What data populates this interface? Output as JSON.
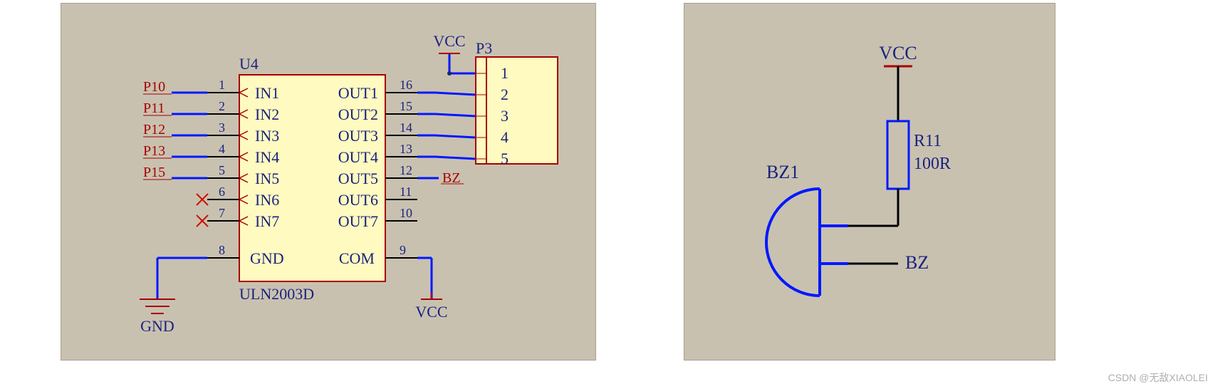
{
  "colors": {
    "panel_bg": "#c9c1b0",
    "panel_border": "#a89f8e",
    "chip_fill": "#fffac0",
    "chip_border": "#a80000",
    "text_navy": "#1a237e",
    "text_maroon": "#a80000",
    "wire_black": "#000000",
    "wire_blue": "#0018ff",
    "nc_red": "#d01000"
  },
  "left": {
    "u_ref": "U4",
    "u_part": "ULN2003D",
    "inputs": [
      {
        "pin": "1",
        "name": "IN1",
        "net": "P10"
      },
      {
        "pin": "2",
        "name": "IN2",
        "net": "P11"
      },
      {
        "pin": "3",
        "name": "IN3",
        "net": "P12"
      },
      {
        "pin": "4",
        "name": "IN4",
        "net": "P13"
      },
      {
        "pin": "5",
        "name": "IN5",
        "net": "P15"
      },
      {
        "pin": "6",
        "name": "IN6",
        "net": ""
      },
      {
        "pin": "7",
        "name": "IN7",
        "net": ""
      }
    ],
    "outputs": [
      {
        "pin": "16",
        "name": "OUT1"
      },
      {
        "pin": "15",
        "name": "OUT2"
      },
      {
        "pin": "14",
        "name": "OUT3"
      },
      {
        "pin": "13",
        "name": "OUT4"
      },
      {
        "pin": "12",
        "name": "OUT5"
      },
      {
        "pin": "11",
        "name": "OUT6"
      },
      {
        "pin": "10",
        "name": "OUT7"
      }
    ],
    "gnd_pin": "8",
    "gnd_name": "GND",
    "com_pin": "9",
    "com_name": "COM",
    "bz_label": "BZ",
    "vcc_label": "VCC",
    "gnd_label": "GND",
    "p3": {
      "ref": "P3",
      "pins": [
        "1",
        "2",
        "3",
        "4",
        "5"
      ]
    }
  },
  "right": {
    "vcc": "VCC",
    "bz": "BZ",
    "buzzer_ref": "BZ1",
    "res_ref": "R11",
    "res_val": "100R"
  },
  "watermark": "CSDN @无敌XIAOLEI",
  "fonts": {
    "label": 22,
    "pin_num": 18,
    "pin_name": 22,
    "net": 22
  }
}
